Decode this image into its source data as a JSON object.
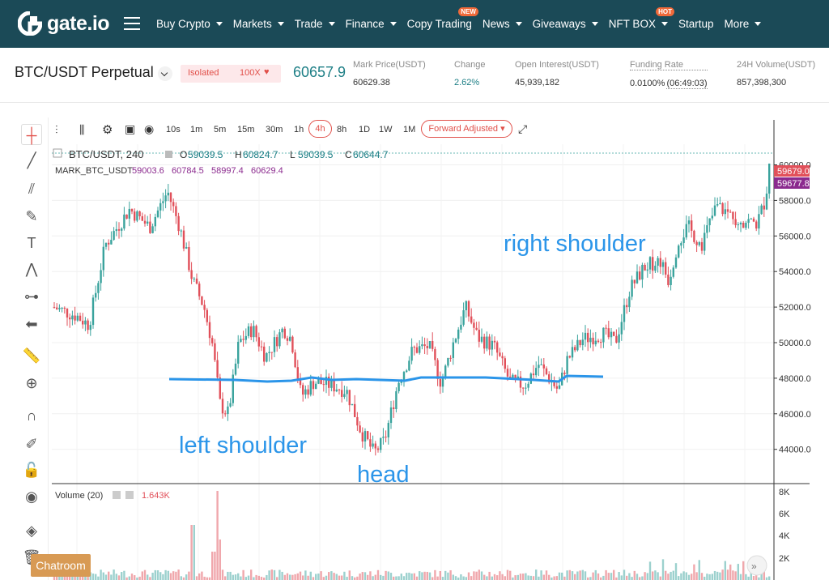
{
  "nav": {
    "logo": "gate.io",
    "items": [
      {
        "label": "Buy Crypto",
        "caret": true,
        "badge": ""
      },
      {
        "label": "Markets",
        "caret": true,
        "badge": ""
      },
      {
        "label": "Trade",
        "caret": true,
        "badge": ""
      },
      {
        "label": "Finance",
        "caret": true,
        "badge": ""
      },
      {
        "label": "Copy Trading",
        "caret": false,
        "badge": "NEW"
      },
      {
        "label": "News",
        "caret": true,
        "badge": ""
      },
      {
        "label": "Giveaways",
        "caret": true,
        "badge": ""
      },
      {
        "label": "NFT BOX",
        "caret": true,
        "badge": "HOT"
      },
      {
        "label": "Startup",
        "caret": false,
        "badge": ""
      },
      {
        "label": "More",
        "caret": true,
        "badge": ""
      }
    ]
  },
  "header": {
    "pair": "BTC/USDT Perpetual",
    "margin_mode": "Isolated",
    "leverage": "100X",
    "last_price": "60657.9",
    "stats": [
      {
        "label": "Mark Price(USDT)",
        "value": "60629.38",
        "value_color": "#333333"
      },
      {
        "label": "Change",
        "value": "2.62%",
        "value_color": "#1e7f86"
      },
      {
        "label": "Open Interest(USDT)",
        "value": "45,939,182",
        "value_color": "#333333"
      },
      {
        "label": "Funding Rate",
        "value": "0.0100%",
        "value_extra": "(06:49:03)",
        "value_color": "#333333"
      },
      {
        "label": "24H Volume(USDT)",
        "value": "857,398,300",
        "value_color": "#333333"
      }
    ]
  },
  "toolbar": {
    "timeframes": [
      "10s",
      "1m",
      "5m",
      "15m",
      "30m",
      "1h",
      "4h",
      "8h",
      "1D",
      "1W",
      "1M"
    ],
    "active_timeframe": "4h",
    "adjust": "Forward Adjusted"
  },
  "chart": {
    "legend_symbol": "BTC/USDT, 240",
    "ohlc": [
      {
        "k": "O",
        "v": "59039.5"
      },
      {
        "k": "H",
        "v": "60824.7"
      },
      {
        "k": "L",
        "v": "59039.5"
      },
      {
        "k": "C",
        "v": "60644.7"
      }
    ],
    "mark_label": "MARK_BTC_USDT",
    "mark_values": [
      "59003.6",
      "60784.5",
      "58997.4",
      "60629.4"
    ],
    "price_ticks": [
      "60000.0",
      "58000.0",
      "56000.0",
      "54000.0",
      "52000.0",
      "50000.0",
      "48000.0",
      "46000.0",
      "44000.0"
    ],
    "price_tag_1": "59679.0",
    "price_tag_2": "59677.8",
    "volume_label": "Volume (20)",
    "volume_value": "1.643K",
    "volume_ticks": [
      "8K",
      "6K",
      "4K",
      "2K"
    ],
    "annotations": {
      "left_shoulder": "left shoulder",
      "head": "head",
      "right_shoulder": "right shoulder"
    },
    "colors": {
      "up": "#3aa39d",
      "down": "#e1505a",
      "neckline": "#2b95e9",
      "annotation": "#2b95e9"
    }
  },
  "chat": {
    "label": "Chatroom"
  }
}
